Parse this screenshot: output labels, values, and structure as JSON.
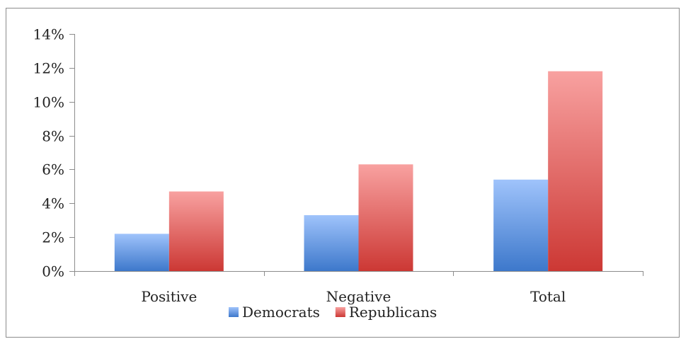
{
  "chart_data": {
    "type": "bar",
    "title": "",
    "xlabel": "",
    "ylabel": "",
    "categories": [
      "Positive",
      "Negative",
      "Total"
    ],
    "series": [
      {
        "name": "Democrats",
        "values": [
          0.022,
          0.033,
          0.054
        ],
        "color_light": "#9fc3fb",
        "color_dark": "#3d78cb"
      },
      {
        "name": "Republicans",
        "values": [
          0.047,
          0.063,
          0.118
        ],
        "color_light": "#f8a1a0",
        "color_dark": "#cc3834"
      }
    ],
    "ylim": [
      0,
      0.14
    ],
    "yticks": [
      0,
      0.02,
      0.04,
      0.06,
      0.08,
      0.1,
      0.12,
      0.14
    ],
    "ytick_labels": [
      "0%",
      "2%",
      "4%",
      "6%",
      "8%",
      "10%",
      "12%",
      "14%"
    ],
    "grid": false,
    "legend_position": "bottom"
  }
}
